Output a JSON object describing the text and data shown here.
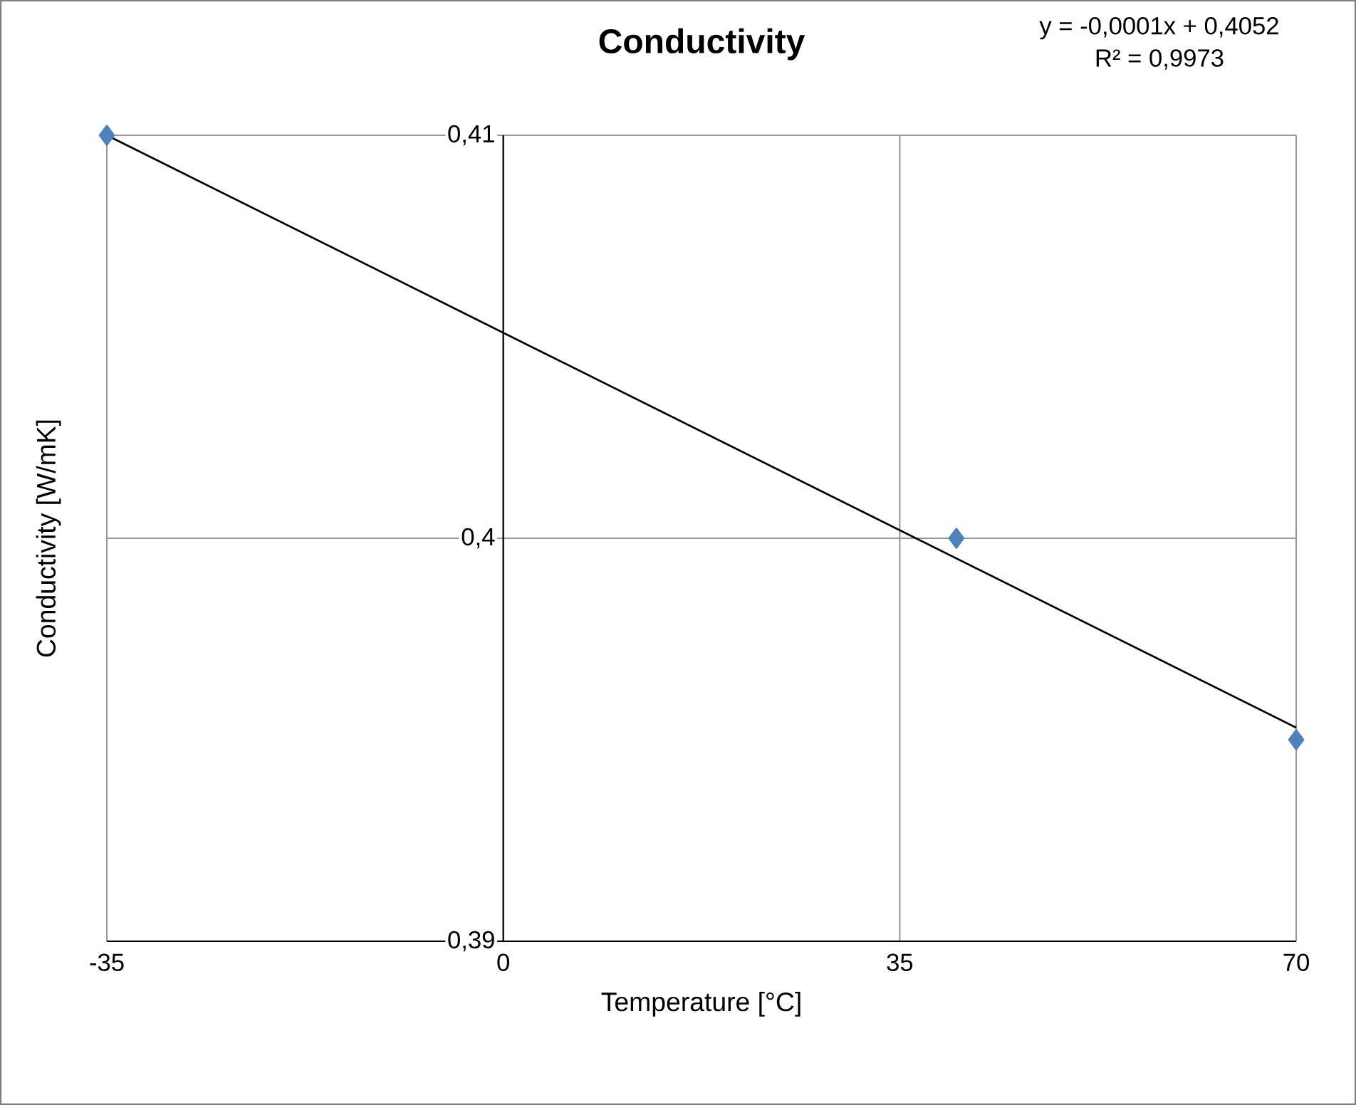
{
  "chart_data": {
    "type": "scatter",
    "title": "Conductivity",
    "xlabel": "Temperature [°C]",
    "ylabel": "Conductivity [W/mK]",
    "annotations": [
      "y = -0,0001x + 0,4052",
      "R² = 0,9973"
    ],
    "series": [
      {
        "color": "#4f81bd",
        "marker": "diamond",
        "x": [
          -35,
          40,
          70
        ],
        "values": [
          0.41,
          0.4,
          0.395
        ]
      },
      {
        "type": "line",
        "color": "#000000",
        "marker": "none",
        "line_style": "solid",
        "x": [
          -35,
          70
        ],
        "values": [
          0.41,
          0.3953
        ]
      }
    ],
    "xlim": [
      -35,
      70
    ],
    "ylim": [
      0.39,
      0.41
    ],
    "xticks": [
      -35,
      0,
      35,
      70
    ],
    "yticks": [
      {
        "value": 0.39,
        "label": "0,39"
      },
      {
        "value": 0.4,
        "label": "0,4"
      },
      {
        "value": 0.41,
        "label": "0,41"
      }
    ],
    "grid": true
  }
}
